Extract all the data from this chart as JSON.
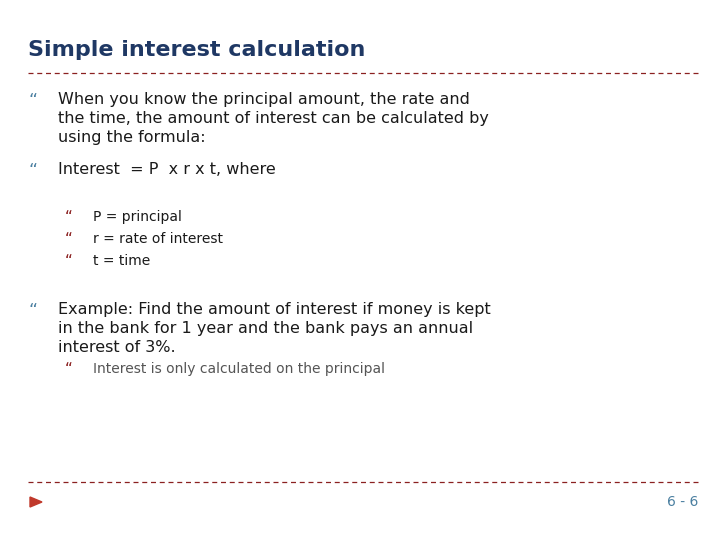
{
  "title": "Simple interest calculation",
  "title_color": "#1F3864",
  "title_fontsize": 16,
  "title_bold": true,
  "background_color": "#FFFFFF",
  "divider_color": "#8B2020",
  "main_bullet_color": "#4A7FA0",
  "sub_bullet_color": "#8B2020",
  "main_text_color": "#1a1a1a",
  "sub_text_color": "#555555",
  "page_num": "6 - 6",
  "page_num_color": "#4A7FA0",
  "triangle_color": "#C0392B",
  "bullet_char": "“",
  "items": [
    {
      "level": 0,
      "text": "When you know the principal amount, the rate and\nthe time, the amount of interest can be calculated by\nusing the formula:",
      "color": "#1a1a1a"
    },
    {
      "level": 0,
      "text": "Interest  = P  x r x t, where",
      "color": "#1a1a1a"
    },
    {
      "level": 1,
      "text": "P = principal",
      "color": "#1a1a1a"
    },
    {
      "level": 1,
      "text": "r = rate of interest",
      "color": "#1a1a1a"
    },
    {
      "level": 1,
      "text": "t = time",
      "color": "#1a1a1a"
    },
    {
      "level": 0,
      "text": "Example: Find the amount of interest if money is kept\nin the bank for 1 year and the bank pays an annual\ninterest of 3%.",
      "color": "#1a1a1a"
    },
    {
      "level": 1,
      "text": "Interest is only calculated on the principal",
      "color": "#555555"
    }
  ]
}
